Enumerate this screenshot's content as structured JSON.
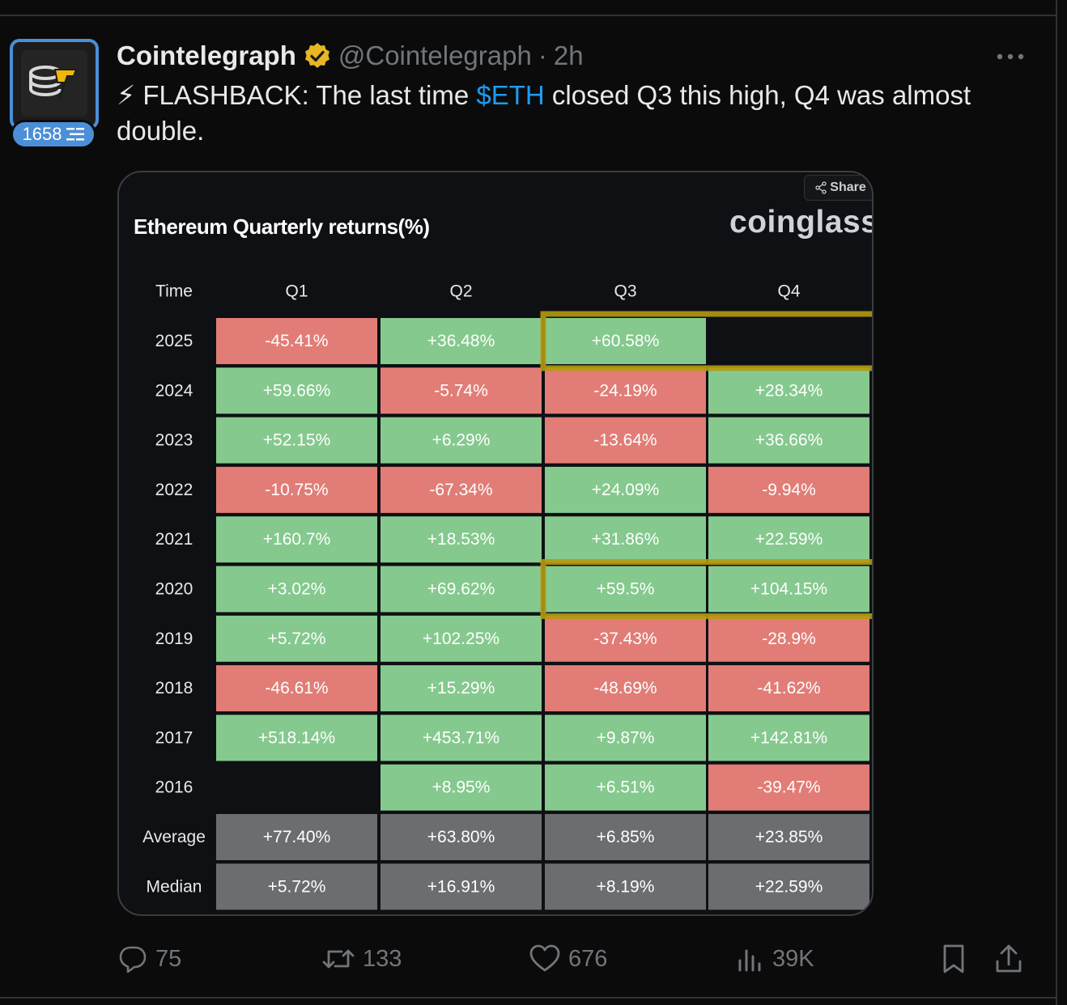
{
  "tweet": {
    "author_name": "Cointelegraph",
    "handle": "@Cointelegraph",
    "separator": "·",
    "time": "2h",
    "level_badge": "1658",
    "text_prefix": "⚡ FLASHBACK: The last time ",
    "cashtag": "$ETH",
    "text_suffix": " closed Q3 this high, Q4 was almost double.",
    "icons": {
      "verified": "verified-badge-icon",
      "more": "more-options-icon",
      "level": "level-bars-icon"
    }
  },
  "card": {
    "share_label": "Share",
    "brand": "coinglass"
  },
  "chart_data": {
    "type": "table",
    "title": "Ethereum Quarterly returns(%)",
    "columns": [
      "Time",
      "Q1",
      "Q2",
      "Q3",
      "Q4"
    ],
    "rows": [
      {
        "label": "2025",
        "values": [
          "-45.41%",
          "+36.48%",
          "+60.58%",
          ""
        ]
      },
      {
        "label": "2024",
        "values": [
          "+59.66%",
          "-5.74%",
          "-24.19%",
          "+28.34%"
        ]
      },
      {
        "label": "2023",
        "values": [
          "+52.15%",
          "+6.29%",
          "-13.64%",
          "+36.66%"
        ]
      },
      {
        "label": "2022",
        "values": [
          "-10.75%",
          "-67.34%",
          "+24.09%",
          "-9.94%"
        ]
      },
      {
        "label": "2021",
        "values": [
          "+160.7%",
          "+18.53%",
          "+31.86%",
          "+22.59%"
        ]
      },
      {
        "label": "2020",
        "values": [
          "+3.02%",
          "+69.62%",
          "+59.5%",
          "+104.15%"
        ]
      },
      {
        "label": "2019",
        "values": [
          "+5.72%",
          "+102.25%",
          "-37.43%",
          "-28.9%"
        ]
      },
      {
        "label": "2018",
        "values": [
          "-46.61%",
          "+15.29%",
          "-48.69%",
          "-41.62%"
        ]
      },
      {
        "label": "2017",
        "values": [
          "+518.14%",
          "+453.71%",
          "+9.87%",
          "+142.81%"
        ]
      },
      {
        "label": "2016",
        "values": [
          "",
          "+8.95%",
          "+6.51%",
          "-39.47%"
        ]
      }
    ],
    "summary_rows": [
      {
        "label": "Average",
        "values": [
          "+77.40%",
          "+63.80%",
          "+6.85%",
          "+23.85%"
        ]
      },
      {
        "label": "Median",
        "values": [
          "+5.72%",
          "+16.91%",
          "+8.19%",
          "+22.59%"
        ]
      }
    ],
    "highlights": [
      {
        "row": "2025",
        "columns": [
          "Q3",
          "Q4"
        ]
      },
      {
        "row": "2020",
        "columns": [
          "Q3",
          "Q4"
        ]
      }
    ],
    "colors": {
      "positive": "#85c98e",
      "negative": "#e17d76",
      "summary": "#6b6d70",
      "highlight": "#b49a10",
      "empty": "#0e1013"
    }
  },
  "actions": {
    "replies": "75",
    "reposts": "133",
    "likes": "676",
    "views": "39K",
    "icons": [
      "reply-icon",
      "repost-icon",
      "like-icon",
      "views-icon",
      "bookmark-icon",
      "share-icon"
    ]
  }
}
